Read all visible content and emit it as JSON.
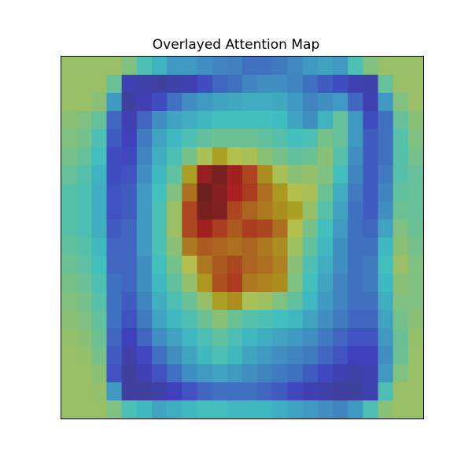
{
  "title": "Overlayed Attention Map",
  "image": {
    "type": "heatmap-overlay",
    "colormap": "jet",
    "overlay_description": "digit-like stroke shape (looks like a '9') with a high-attention red core centered in the image",
    "grid": [
      [
        0.55,
        0.55,
        0.55,
        0.55,
        0.5,
        0.4,
        0.35,
        0.3,
        0.3,
        0.28,
        0.26,
        0.25,
        0.22,
        0.22,
        0.24,
        0.27,
        0.3,
        0.32,
        0.3,
        0.4,
        0.5,
        0.55,
        0.55,
        0.55
      ],
      [
        0.55,
        0.55,
        0.55,
        0.45,
        0.1,
        0.08,
        0.06,
        0.08,
        0.1,
        0.15,
        0.2,
        0.22,
        0.26,
        0.28,
        0.28,
        0.26,
        0.22,
        0.18,
        0.15,
        0.1,
        0.08,
        0.45,
        0.55,
        0.55
      ],
      [
        0.55,
        0.55,
        0.52,
        0.3,
        0.06,
        0.1,
        0.15,
        0.22,
        0.28,
        0.3,
        0.32,
        0.33,
        0.34,
        0.34,
        0.33,
        0.3,
        0.26,
        0.28,
        0.3,
        0.2,
        0.1,
        0.3,
        0.5,
        0.55
      ],
      [
        0.52,
        0.5,
        0.45,
        0.2,
        0.1,
        0.2,
        0.28,
        0.32,
        0.34,
        0.36,
        0.38,
        0.38,
        0.38,
        0.38,
        0.37,
        0.32,
        0.28,
        0.35,
        0.45,
        0.3,
        0.15,
        0.22,
        0.45,
        0.52
      ],
      [
        0.5,
        0.48,
        0.4,
        0.18,
        0.12,
        0.24,
        0.32,
        0.36,
        0.4,
        0.44,
        0.46,
        0.46,
        0.46,
        0.44,
        0.42,
        0.38,
        0.4,
        0.48,
        0.45,
        0.3,
        0.18,
        0.22,
        0.42,
        0.5
      ],
      [
        0.48,
        0.45,
        0.38,
        0.15,
        0.14,
        0.26,
        0.34,
        0.4,
        0.48,
        0.58,
        0.62,
        0.6,
        0.58,
        0.52,
        0.48,
        0.44,
        0.46,
        0.52,
        0.42,
        0.28,
        0.18,
        0.22,
        0.42,
        0.48
      ],
      [
        0.45,
        0.42,
        0.35,
        0.15,
        0.16,
        0.28,
        0.36,
        0.44,
        0.62,
        0.92,
        0.98,
        0.9,
        0.8,
        0.66,
        0.58,
        0.52,
        0.54,
        0.5,
        0.38,
        0.26,
        0.18,
        0.24,
        0.42,
        0.45
      ],
      [
        0.42,
        0.4,
        0.34,
        0.16,
        0.18,
        0.3,
        0.38,
        0.5,
        0.72,
        1.0,
        0.95,
        0.88,
        0.82,
        0.72,
        0.64,
        0.6,
        0.58,
        0.46,
        0.34,
        0.24,
        0.18,
        0.26,
        0.44,
        0.45
      ],
      [
        0.42,
        0.4,
        0.34,
        0.16,
        0.18,
        0.3,
        0.4,
        0.55,
        0.8,
        0.98,
        0.96,
        0.8,
        0.74,
        0.7,
        0.66,
        0.62,
        0.54,
        0.42,
        0.32,
        0.22,
        0.18,
        0.28,
        0.46,
        0.45
      ],
      [
        0.42,
        0.4,
        0.34,
        0.18,
        0.2,
        0.3,
        0.4,
        0.55,
        0.8,
        0.9,
        0.82,
        0.76,
        0.82,
        0.8,
        0.72,
        0.6,
        0.48,
        0.38,
        0.3,
        0.22,
        0.2,
        0.32,
        0.5,
        0.46
      ],
      [
        0.44,
        0.42,
        0.36,
        0.2,
        0.2,
        0.3,
        0.4,
        0.52,
        0.7,
        0.76,
        0.74,
        0.72,
        0.74,
        0.7,
        0.66,
        0.56,
        0.44,
        0.36,
        0.28,
        0.22,
        0.22,
        0.36,
        0.52,
        0.48
      ],
      [
        0.46,
        0.44,
        0.38,
        0.2,
        0.2,
        0.28,
        0.38,
        0.48,
        0.6,
        0.7,
        0.76,
        0.8,
        0.74,
        0.72,
        0.68,
        0.52,
        0.4,
        0.34,
        0.28,
        0.22,
        0.24,
        0.38,
        0.55,
        0.5
      ],
      [
        0.48,
        0.46,
        0.4,
        0.22,
        0.2,
        0.28,
        0.36,
        0.44,
        0.54,
        0.64,
        0.78,
        0.82,
        0.7,
        0.68,
        0.66,
        0.5,
        0.38,
        0.32,
        0.26,
        0.22,
        0.24,
        0.36,
        0.52,
        0.5
      ],
      [
        0.5,
        0.48,
        0.42,
        0.22,
        0.18,
        0.26,
        0.34,
        0.4,
        0.46,
        0.54,
        0.62,
        0.66,
        0.58,
        0.56,
        0.5,
        0.44,
        0.36,
        0.3,
        0.26,
        0.22,
        0.22,
        0.34,
        0.5,
        0.5
      ],
      [
        0.52,
        0.5,
        0.44,
        0.22,
        0.16,
        0.24,
        0.32,
        0.36,
        0.4,
        0.46,
        0.52,
        0.46,
        0.42,
        0.4,
        0.38,
        0.36,
        0.32,
        0.28,
        0.24,
        0.2,
        0.2,
        0.32,
        0.48,
        0.52
      ],
      [
        0.54,
        0.52,
        0.46,
        0.2,
        0.12,
        0.2,
        0.28,
        0.32,
        0.36,
        0.4,
        0.44,
        0.4,
        0.36,
        0.34,
        0.32,
        0.3,
        0.28,
        0.24,
        0.2,
        0.16,
        0.16,
        0.3,
        0.46,
        0.54
      ],
      [
        0.55,
        0.54,
        0.48,
        0.18,
        0.08,
        0.14,
        0.22,
        0.28,
        0.32,
        0.36,
        0.4,
        0.36,
        0.32,
        0.3,
        0.28,
        0.26,
        0.24,
        0.2,
        0.16,
        0.12,
        0.12,
        0.28,
        0.46,
        0.55
      ],
      [
        0.55,
        0.55,
        0.52,
        0.16,
        0.06,
        0.1,
        0.16,
        0.22,
        0.28,
        0.3,
        0.32,
        0.3,
        0.28,
        0.26,
        0.24,
        0.22,
        0.18,
        0.14,
        0.1,
        0.08,
        0.1,
        0.3,
        0.5,
        0.55
      ],
      [
        0.55,
        0.55,
        0.54,
        0.3,
        0.06,
        0.06,
        0.08,
        0.12,
        0.16,
        0.2,
        0.22,
        0.22,
        0.22,
        0.2,
        0.18,
        0.14,
        0.1,
        0.08,
        0.06,
        0.06,
        0.1,
        0.4,
        0.55,
        0.55
      ],
      [
        0.55,
        0.55,
        0.55,
        0.5,
        0.4,
        0.36,
        0.32,
        0.34,
        0.36,
        0.38,
        0.38,
        0.36,
        0.36,
        0.36,
        0.34,
        0.32,
        0.3,
        0.28,
        0.26,
        0.3,
        0.4,
        0.52,
        0.55,
        0.55
      ]
    ]
  },
  "colors": {
    "frame": "#000000",
    "background": "#ffffff"
  }
}
